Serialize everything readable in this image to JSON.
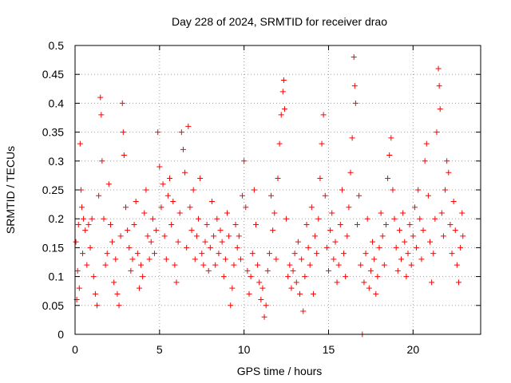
{
  "chart_data": {
    "type": "scatter",
    "title": "Day 228 of 2024, SRMTID for receiver drao",
    "xlabel": "GPS time / hours",
    "ylabel": "SRMTID / TECUs",
    "xlim": [
      0,
      24
    ],
    "ylim": [
      0,
      0.5
    ],
    "x_ticks": [
      0,
      5,
      10,
      15,
      20
    ],
    "x_tick_labels": [
      "0",
      "5",
      "10",
      "15",
      "20"
    ],
    "y_ticks": [
      0,
      0.05,
      0.1,
      0.15,
      0.2,
      0.25,
      0.3,
      0.35,
      0.4,
      0.45,
      0.5
    ],
    "y_tick_labels": [
      "0",
      "0.05",
      "0.1",
      "0.15",
      "0.2",
      "0.25",
      "0.3",
      "0.35",
      "0.4",
      "0.45",
      "0.5"
    ],
    "grid": true,
    "marker": "+",
    "series": [
      {
        "name": "SRMTID",
        "color": "#ff0000",
        "points": [
          [
            0.05,
            0.16
          ],
          [
            0.1,
            0.06
          ],
          [
            0.15,
            0.11
          ],
          [
            0.2,
            0.19
          ],
          [
            0.25,
            0.08
          ],
          [
            0.3,
            0.33
          ],
          [
            0.35,
            0.25
          ],
          [
            0.4,
            0.22
          ],
          [
            0.45,
            0.14
          ],
          [
            0.5,
            0.2
          ],
          [
            0.6,
            0.18
          ],
          [
            0.7,
            0.12
          ],
          [
            0.8,
            0.19
          ],
          [
            0.9,
            0.15
          ],
          [
            1.0,
            0.2
          ],
          [
            1.1,
            0.1
          ],
          [
            1.2,
            0.07
          ],
          [
            1.3,
            0.05
          ],
          [
            1.4,
            0.24
          ],
          [
            1.5,
            0.41
          ],
          [
            1.55,
            0.38
          ],
          [
            1.6,
            0.3
          ],
          [
            1.7,
            0.2
          ],
          [
            1.8,
            0.12
          ],
          [
            1.9,
            0.14
          ],
          [
            2.0,
            0.26
          ],
          [
            2.1,
            0.19
          ],
          [
            2.2,
            0.16
          ],
          [
            2.3,
            0.09
          ],
          [
            2.4,
            0.13
          ],
          [
            2.5,
            0.07
          ],
          [
            2.6,
            0.05
          ],
          [
            2.7,
            0.17
          ],
          [
            2.8,
            0.4
          ],
          [
            2.85,
            0.35
          ],
          [
            2.9,
            0.31
          ],
          [
            3.0,
            0.22
          ],
          [
            3.1,
            0.18
          ],
          [
            3.2,
            0.15
          ],
          [
            3.3,
            0.11
          ],
          [
            3.4,
            0.13
          ],
          [
            3.5,
            0.19
          ],
          [
            3.6,
            0.23
          ],
          [
            3.7,
            0.14
          ],
          [
            3.8,
            0.08
          ],
          [
            3.9,
            0.12
          ],
          [
            4.0,
            0.1
          ],
          [
            4.1,
            0.21
          ],
          [
            4.2,
            0.25
          ],
          [
            4.3,
            0.17
          ],
          [
            4.4,
            0.13
          ],
          [
            4.5,
            0.16
          ],
          [
            4.6,
            0.2
          ],
          [
            4.7,
            0.14
          ],
          [
            4.8,
            0.18
          ],
          [
            4.9,
            0.35
          ],
          [
            5.0,
            0.29
          ],
          [
            5.1,
            0.22
          ],
          [
            5.2,
            0.26
          ],
          [
            5.3,
            0.17
          ],
          [
            5.4,
            0.13
          ],
          [
            5.5,
            0.24
          ],
          [
            5.6,
            0.27
          ],
          [
            5.7,
            0.19
          ],
          [
            5.8,
            0.23
          ],
          [
            5.9,
            0.12
          ],
          [
            6.0,
            0.09
          ],
          [
            6.1,
            0.16
          ],
          [
            6.2,
            0.21
          ],
          [
            6.3,
            0.35
          ],
          [
            6.4,
            0.32
          ],
          [
            6.5,
            0.28
          ],
          [
            6.6,
            0.15
          ],
          [
            6.7,
            0.36
          ],
          [
            6.8,
            0.22
          ],
          [
            6.9,
            0.18
          ],
          [
            7.0,
            0.25
          ],
          [
            7.1,
            0.13
          ],
          [
            7.2,
            0.17
          ],
          [
            7.3,
            0.2
          ],
          [
            7.4,
            0.27
          ],
          [
            7.5,
            0.14
          ],
          [
            7.6,
            0.12
          ],
          [
            7.7,
            0.16
          ],
          [
            7.8,
            0.19
          ],
          [
            7.9,
            0.11
          ],
          [
            8.0,
            0.15
          ],
          [
            8.1,
            0.23
          ],
          [
            8.2,
            0.17
          ],
          [
            8.3,
            0.12
          ],
          [
            8.4,
            0.2
          ],
          [
            8.5,
            0.14
          ],
          [
            8.6,
            0.18
          ],
          [
            8.7,
            0.16
          ],
          [
            8.8,
            0.1
          ],
          [
            8.9,
            0.13
          ],
          [
            9.0,
            0.21
          ],
          [
            9.1,
            0.17
          ],
          [
            9.2,
            0.05
          ],
          [
            9.3,
            0.08
          ],
          [
            9.4,
            0.12
          ],
          [
            9.5,
            0.19
          ],
          [
            9.6,
            0.15
          ],
          [
            9.7,
            0.17
          ],
          [
            9.8,
            0.13
          ],
          [
            9.9,
            0.24
          ],
          [
            10.0,
            0.3
          ],
          [
            10.1,
            0.22
          ],
          [
            10.2,
            0.11
          ],
          [
            10.3,
            0.07
          ],
          [
            10.4,
            0.1
          ],
          [
            10.5,
            0.14
          ],
          [
            10.6,
            0.25
          ],
          [
            10.7,
            0.19
          ],
          [
            10.8,
            0.12
          ],
          [
            10.9,
            0.09
          ],
          [
            11.0,
            0.06
          ],
          [
            11.1,
            0.08
          ],
          [
            11.2,
            0.03
          ],
          [
            11.3,
            0.05
          ],
          [
            11.4,
            0.11
          ],
          [
            11.5,
            0.14
          ],
          [
            11.6,
            0.24
          ],
          [
            11.7,
            0.18
          ],
          [
            11.8,
            0.21
          ],
          [
            11.9,
            0.13
          ],
          [
            12.0,
            0.27
          ],
          [
            12.1,
            0.33
          ],
          [
            12.2,
            0.38
          ],
          [
            12.3,
            0.42
          ],
          [
            12.35,
            0.44
          ],
          [
            12.4,
            0.39
          ],
          [
            12.5,
            0.2
          ],
          [
            12.6,
            0.1
          ],
          [
            12.7,
            0.12
          ],
          [
            12.8,
            0.08
          ],
          [
            12.9,
            0.11
          ],
          [
            13.0,
            0.14
          ],
          [
            13.1,
            0.09
          ],
          [
            13.2,
            0.16
          ],
          [
            13.3,
            0.07
          ],
          [
            13.4,
            0.13
          ],
          [
            13.5,
            0.04
          ],
          [
            13.6,
            0.1
          ],
          [
            13.7,
            0.19
          ],
          [
            13.8,
            0.15
          ],
          [
            13.9,
            0.12
          ],
          [
            14.0,
            0.22
          ],
          [
            14.1,
            0.07
          ],
          [
            14.2,
            0.17
          ],
          [
            14.3,
            0.14
          ],
          [
            14.4,
            0.2
          ],
          [
            14.5,
            0.27
          ],
          [
            14.6,
            0.33
          ],
          [
            14.7,
            0.38
          ],
          [
            14.8,
            0.24
          ],
          [
            14.9,
            0.15
          ],
          [
            15.0,
            0.11
          ],
          [
            15.1,
            0.18
          ],
          [
            15.2,
            0.21
          ],
          [
            15.3,
            0.13
          ],
          [
            15.4,
            0.16
          ],
          [
            15.5,
            0.09
          ],
          [
            15.6,
            0.12
          ],
          [
            15.7,
            0.19
          ],
          [
            15.8,
            0.25
          ],
          [
            15.9,
            0.14
          ],
          [
            16.0,
            0.1
          ],
          [
            16.1,
            0.17
          ],
          [
            16.2,
            0.22
          ],
          [
            16.3,
            0.28
          ],
          [
            16.4,
            0.34
          ],
          [
            16.5,
            0.48
          ],
          [
            16.55,
            0.43
          ],
          [
            16.6,
            0.4
          ],
          [
            16.7,
            0.19
          ],
          [
            16.8,
            0.24
          ],
          [
            16.9,
            0.12
          ],
          [
            17.0,
            0.0
          ],
          [
            17.1,
            0.09
          ],
          [
            17.2,
            0.14
          ],
          [
            17.3,
            0.2
          ],
          [
            17.4,
            0.08
          ],
          [
            17.5,
            0.11
          ],
          [
            17.6,
            0.16
          ],
          [
            17.7,
            0.13
          ],
          [
            17.8,
            0.07
          ],
          [
            17.9,
            0.1
          ],
          [
            18.0,
            0.15
          ],
          [
            18.1,
            0.21
          ],
          [
            18.2,
            0.17
          ],
          [
            18.3,
            0.12
          ],
          [
            18.4,
            0.19
          ],
          [
            18.5,
            0.27
          ],
          [
            18.6,
            0.31
          ],
          [
            18.7,
            0.34
          ],
          [
            18.8,
            0.25
          ],
          [
            18.9,
            0.2
          ],
          [
            19.0,
            0.15
          ],
          [
            19.1,
            0.11
          ],
          [
            19.2,
            0.18
          ],
          [
            19.3,
            0.13
          ],
          [
            19.4,
            0.21
          ],
          [
            19.5,
            0.16
          ],
          [
            19.6,
            0.1
          ],
          [
            19.7,
            0.14
          ],
          [
            19.8,
            0.19
          ],
          [
            19.9,
            0.12
          ],
          [
            20.0,
            0.17
          ],
          [
            20.1,
            0.22
          ],
          [
            20.2,
            0.15
          ],
          [
            20.3,
            0.25
          ],
          [
            20.4,
            0.2
          ],
          [
            20.5,
            0.13
          ],
          [
            20.6,
            0.18
          ],
          [
            20.7,
            0.3
          ],
          [
            20.8,
            0.33
          ],
          [
            20.9,
            0.24
          ],
          [
            21.0,
            0.16
          ],
          [
            21.1,
            0.09
          ],
          [
            21.2,
            0.14
          ],
          [
            21.3,
            0.2
          ],
          [
            21.4,
            0.35
          ],
          [
            21.5,
            0.46
          ],
          [
            21.55,
            0.43
          ],
          [
            21.6,
            0.39
          ],
          [
            21.7,
            0.21
          ],
          [
            21.8,
            0.17
          ],
          [
            21.9,
            0.25
          ],
          [
            22.0,
            0.3
          ],
          [
            22.1,
            0.28
          ],
          [
            22.2,
            0.19
          ],
          [
            22.3,
            0.14
          ],
          [
            22.4,
            0.23
          ],
          [
            22.5,
            0.18
          ],
          [
            22.6,
            0.12
          ],
          [
            22.7,
            0.09
          ],
          [
            22.8,
            0.15
          ],
          [
            22.9,
            0.21
          ],
          [
            22.95,
            0.17
          ]
        ]
      }
    ]
  }
}
